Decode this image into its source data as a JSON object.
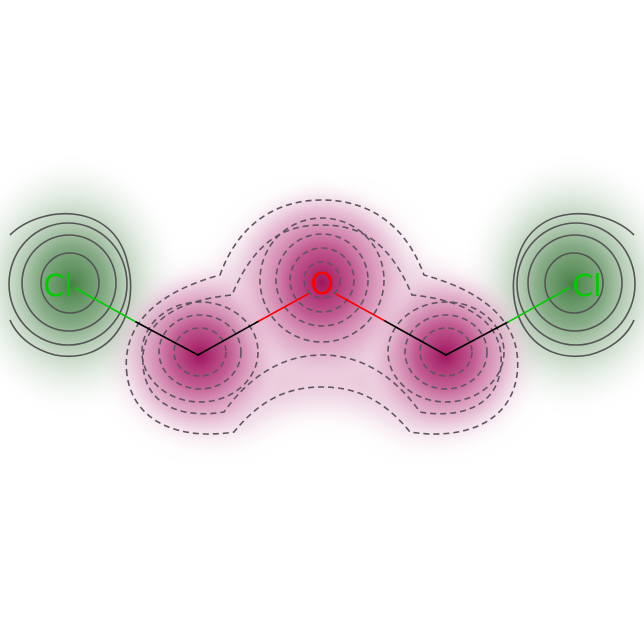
{
  "molecule": {
    "atoms": [
      {
        "id": "cl1",
        "label": "Cl",
        "color": "#00cc00"
      },
      {
        "id": "c1",
        "label": "",
        "color": "#000000"
      },
      {
        "id": "o",
        "label": "O",
        "color": "#ff0000"
      },
      {
        "id": "c2",
        "label": "",
        "color": "#000000"
      },
      {
        "id": "cl2",
        "label": "Cl",
        "color": "#00cc00"
      }
    ]
  },
  "colors": {
    "negative_map": "#2f6b2f",
    "positive_map": "#a0105e",
    "contour": "#555555",
    "bond_carbon": "#000000",
    "bond_oxygen": "#ff0000",
    "bond_chlorine": "#00cc00"
  }
}
